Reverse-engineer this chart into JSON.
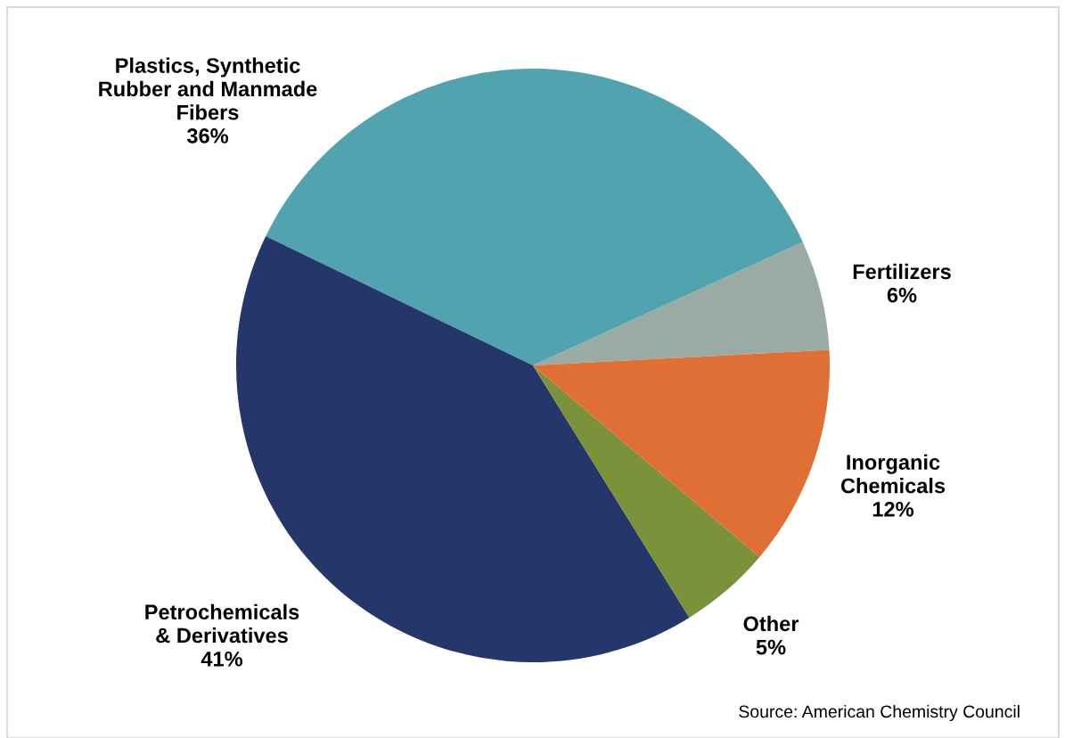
{
  "chart_data": {
    "type": "pie",
    "categories": [
      "Fertilizers",
      "Plastics, Synthetic\nRubber and Manmade\nFibers",
      "Petrochemicals\n& Derivatives",
      "Other",
      "Inorganic\nChemicals"
    ],
    "values": [
      6,
      36,
      41,
      5,
      12
    ],
    "colors": [
      "#9aaba5",
      "#52a3b0",
      "#25366a",
      "#7c923a",
      "#e06f35"
    ],
    "value_labels": [
      "6%",
      "36%",
      "41%",
      "5%",
      "12%"
    ],
    "legend": false,
    "annotations": [
      "Source: American Chemistry Council"
    ]
  }
}
